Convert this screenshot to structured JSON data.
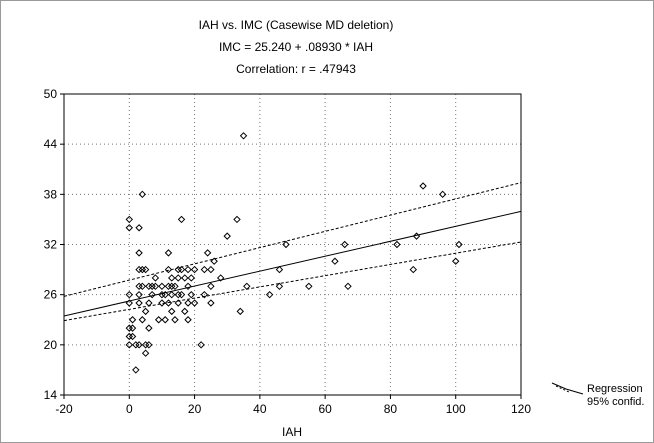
{
  "chart_data": {
    "type": "scatter",
    "title": "IAH vs. IMC (Casewise MD deletion)",
    "equation": "IMC = 25.240 + .08930 * IAH",
    "correlation": "Correlation: r = .47943",
    "xlabel": "IAH",
    "ylabel": "",
    "xlim": [
      -20,
      120
    ],
    "ylim": [
      14,
      50
    ],
    "xticks": [
      "-20",
      "0",
      "20",
      "40",
      "60",
      "80",
      "100",
      "120"
    ],
    "yticks": [
      "14",
      "20",
      "26",
      "32",
      "38",
      "44",
      "50"
    ],
    "grid": true,
    "regression": {
      "intercept": 25.24,
      "slope": 0.0893
    },
    "confidence_band": {
      "at_x": [
        -20,
        120
      ],
      "upper": [
        25.8,
        39.4
      ],
      "lower": [
        22.9,
        32.3
      ]
    },
    "legend": [
      "Regression",
      "95% confid."
    ],
    "points": [
      [
        0,
        35
      ],
      [
        0,
        34
      ],
      [
        0,
        26
      ],
      [
        0,
        25
      ],
      [
        0,
        22
      ],
      [
        0,
        21
      ],
      [
        0,
        20
      ],
      [
        1,
        22
      ],
      [
        1,
        23
      ],
      [
        1,
        21
      ],
      [
        2,
        20
      ],
      [
        2,
        17
      ],
      [
        3,
        34
      ],
      [
        3,
        31
      ],
      [
        3,
        29
      ],
      [
        3,
        27
      ],
      [
        3,
        26
      ],
      [
        3,
        25
      ],
      [
        3,
        20
      ],
      [
        4,
        38
      ],
      [
        4,
        29
      ],
      [
        4,
        27
      ],
      [
        4,
        23
      ],
      [
        5,
        29
      ],
      [
        5,
        24
      ],
      [
        5,
        20
      ],
      [
        5,
        19
      ],
      [
        6,
        27
      ],
      [
        6,
        25
      ],
      [
        6,
        22
      ],
      [
        6,
        20
      ],
      [
        7,
        27
      ],
      [
        7,
        26
      ],
      [
        8,
        28
      ],
      [
        8,
        27
      ],
      [
        9,
        23
      ],
      [
        10,
        27
      ],
      [
        10,
        26
      ],
      [
        10,
        25
      ],
      [
        11,
        26
      ],
      [
        11,
        23
      ],
      [
        12,
        31
      ],
      [
        12,
        29
      ],
      [
        12,
        27
      ],
      [
        12,
        25
      ],
      [
        13,
        28
      ],
      [
        13,
        27
      ],
      [
        13,
        26
      ],
      [
        13,
        24
      ],
      [
        14,
        27
      ],
      [
        14,
        23
      ],
      [
        15,
        29
      ],
      [
        15,
        28
      ],
      [
        15,
        26
      ],
      [
        15,
        25
      ],
      [
        16,
        35
      ],
      [
        16,
        29
      ],
      [
        16,
        26
      ],
      [
        17,
        28
      ],
      [
        17,
        24
      ],
      [
        18,
        29
      ],
      [
        18,
        27
      ],
      [
        18,
        25
      ],
      [
        18,
        23
      ],
      [
        19,
        28
      ],
      [
        19,
        26
      ],
      [
        20,
        29
      ],
      [
        20,
        25
      ],
      [
        22,
        20
      ],
      [
        23,
        29
      ],
      [
        23,
        26
      ],
      [
        24,
        31
      ],
      [
        25,
        29
      ],
      [
        25,
        27
      ],
      [
        25,
        25
      ],
      [
        26,
        30
      ],
      [
        28,
        28
      ],
      [
        30,
        33
      ],
      [
        33,
        35
      ],
      [
        34,
        24
      ],
      [
        35,
        45
      ],
      [
        36,
        27
      ],
      [
        43,
        26
      ],
      [
        46,
        29
      ],
      [
        46,
        27
      ],
      [
        48,
        32
      ],
      [
        55,
        27
      ],
      [
        63,
        30
      ],
      [
        66,
        32
      ],
      [
        67,
        27
      ],
      [
        82,
        32
      ],
      [
        87,
        29
      ],
      [
        88,
        33
      ],
      [
        90,
        39
      ],
      [
        96,
        38
      ],
      [
        100,
        30
      ],
      [
        101,
        32
      ]
    ]
  }
}
